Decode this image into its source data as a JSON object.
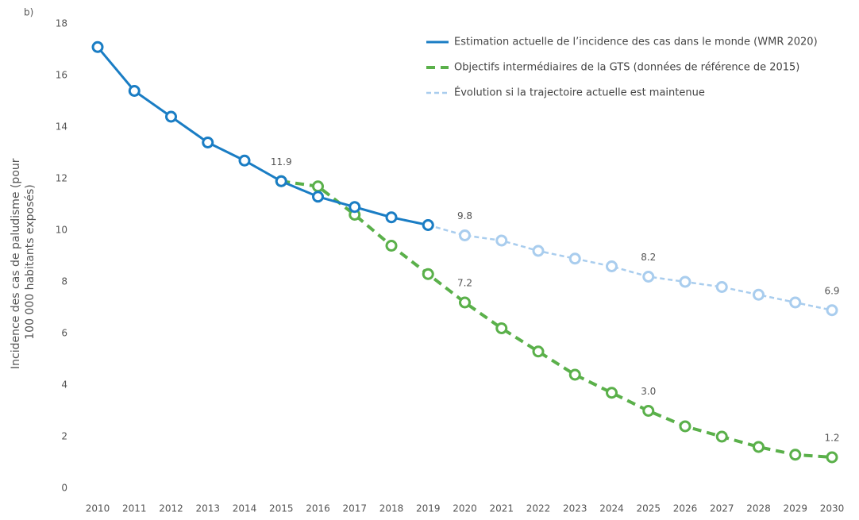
{
  "chart_data": {
    "type": "line",
    "panel_label": "b)",
    "y_label": [
      "Incidence des cas de paludisme (pour",
      "100 000 habitants exposés)"
    ],
    "categories": [
      "2010",
      "2011",
      "2012",
      "2013",
      "2014",
      "2015",
      "2016",
      "2017",
      "2018",
      "2019",
      "2020",
      "2021",
      "2022",
      "2023",
      "2024",
      "2025",
      "2026",
      "2027",
      "2028",
      "2029",
      "2030"
    ],
    "ylim": [
      0,
      18
    ],
    "yticks": [
      0,
      2,
      4,
      6,
      8,
      10,
      12,
      14,
      16,
      18
    ],
    "series": [
      {
        "name": "Estimation actuelle de l’incidence des cas dans le monde (WMR 2020)",
        "color": "#1a7dc4",
        "line_style": "solid",
        "values": [
          17.1,
          15.4,
          14.4,
          13.4,
          12.7,
          11.9,
          11.3,
          10.9,
          10.5,
          10.2,
          null,
          null,
          null,
          null,
          null,
          null,
          null,
          null,
          null,
          null,
          null
        ],
        "value_labels": [
          null,
          null,
          null,
          null,
          null,
          "11.9",
          null,
          null,
          null,
          null,
          null,
          null,
          null,
          null,
          null,
          null,
          null,
          null,
          null,
          null,
          null
        ]
      },
      {
        "name": "Objectifs intermédiaires de la GTS (données de référence de 2015)",
        "color": "#5ab04a",
        "line_style": "dashed",
        "values": [
          null,
          null,
          null,
          null,
          null,
          11.9,
          11.7,
          10.6,
          9.4,
          8.3,
          7.2,
          6.2,
          5.3,
          4.4,
          3.7,
          3.0,
          2.4,
          2.0,
          1.6,
          1.3,
          1.2
        ],
        "value_labels": [
          null,
          null,
          null,
          null,
          null,
          null,
          null,
          null,
          null,
          null,
          "7.2",
          null,
          null,
          null,
          null,
          "3.0",
          null,
          null,
          null,
          null,
          "1.2"
        ]
      },
      {
        "name": "Évolution si la trajectoire actuelle est maintenue",
        "color": "#a9cdee",
        "line_style": "dotted",
        "values": [
          null,
          null,
          null,
          null,
          null,
          null,
          null,
          null,
          null,
          10.2,
          9.8,
          9.6,
          9.2,
          8.9,
          8.6,
          8.2,
          8.0,
          7.8,
          7.5,
          7.2,
          6.9
        ],
        "value_labels": [
          null,
          null,
          null,
          null,
          null,
          null,
          null,
          null,
          null,
          null,
          "9.8",
          null,
          null,
          null,
          null,
          "8.2",
          null,
          null,
          null,
          null,
          "6.9"
        ]
      }
    ]
  }
}
